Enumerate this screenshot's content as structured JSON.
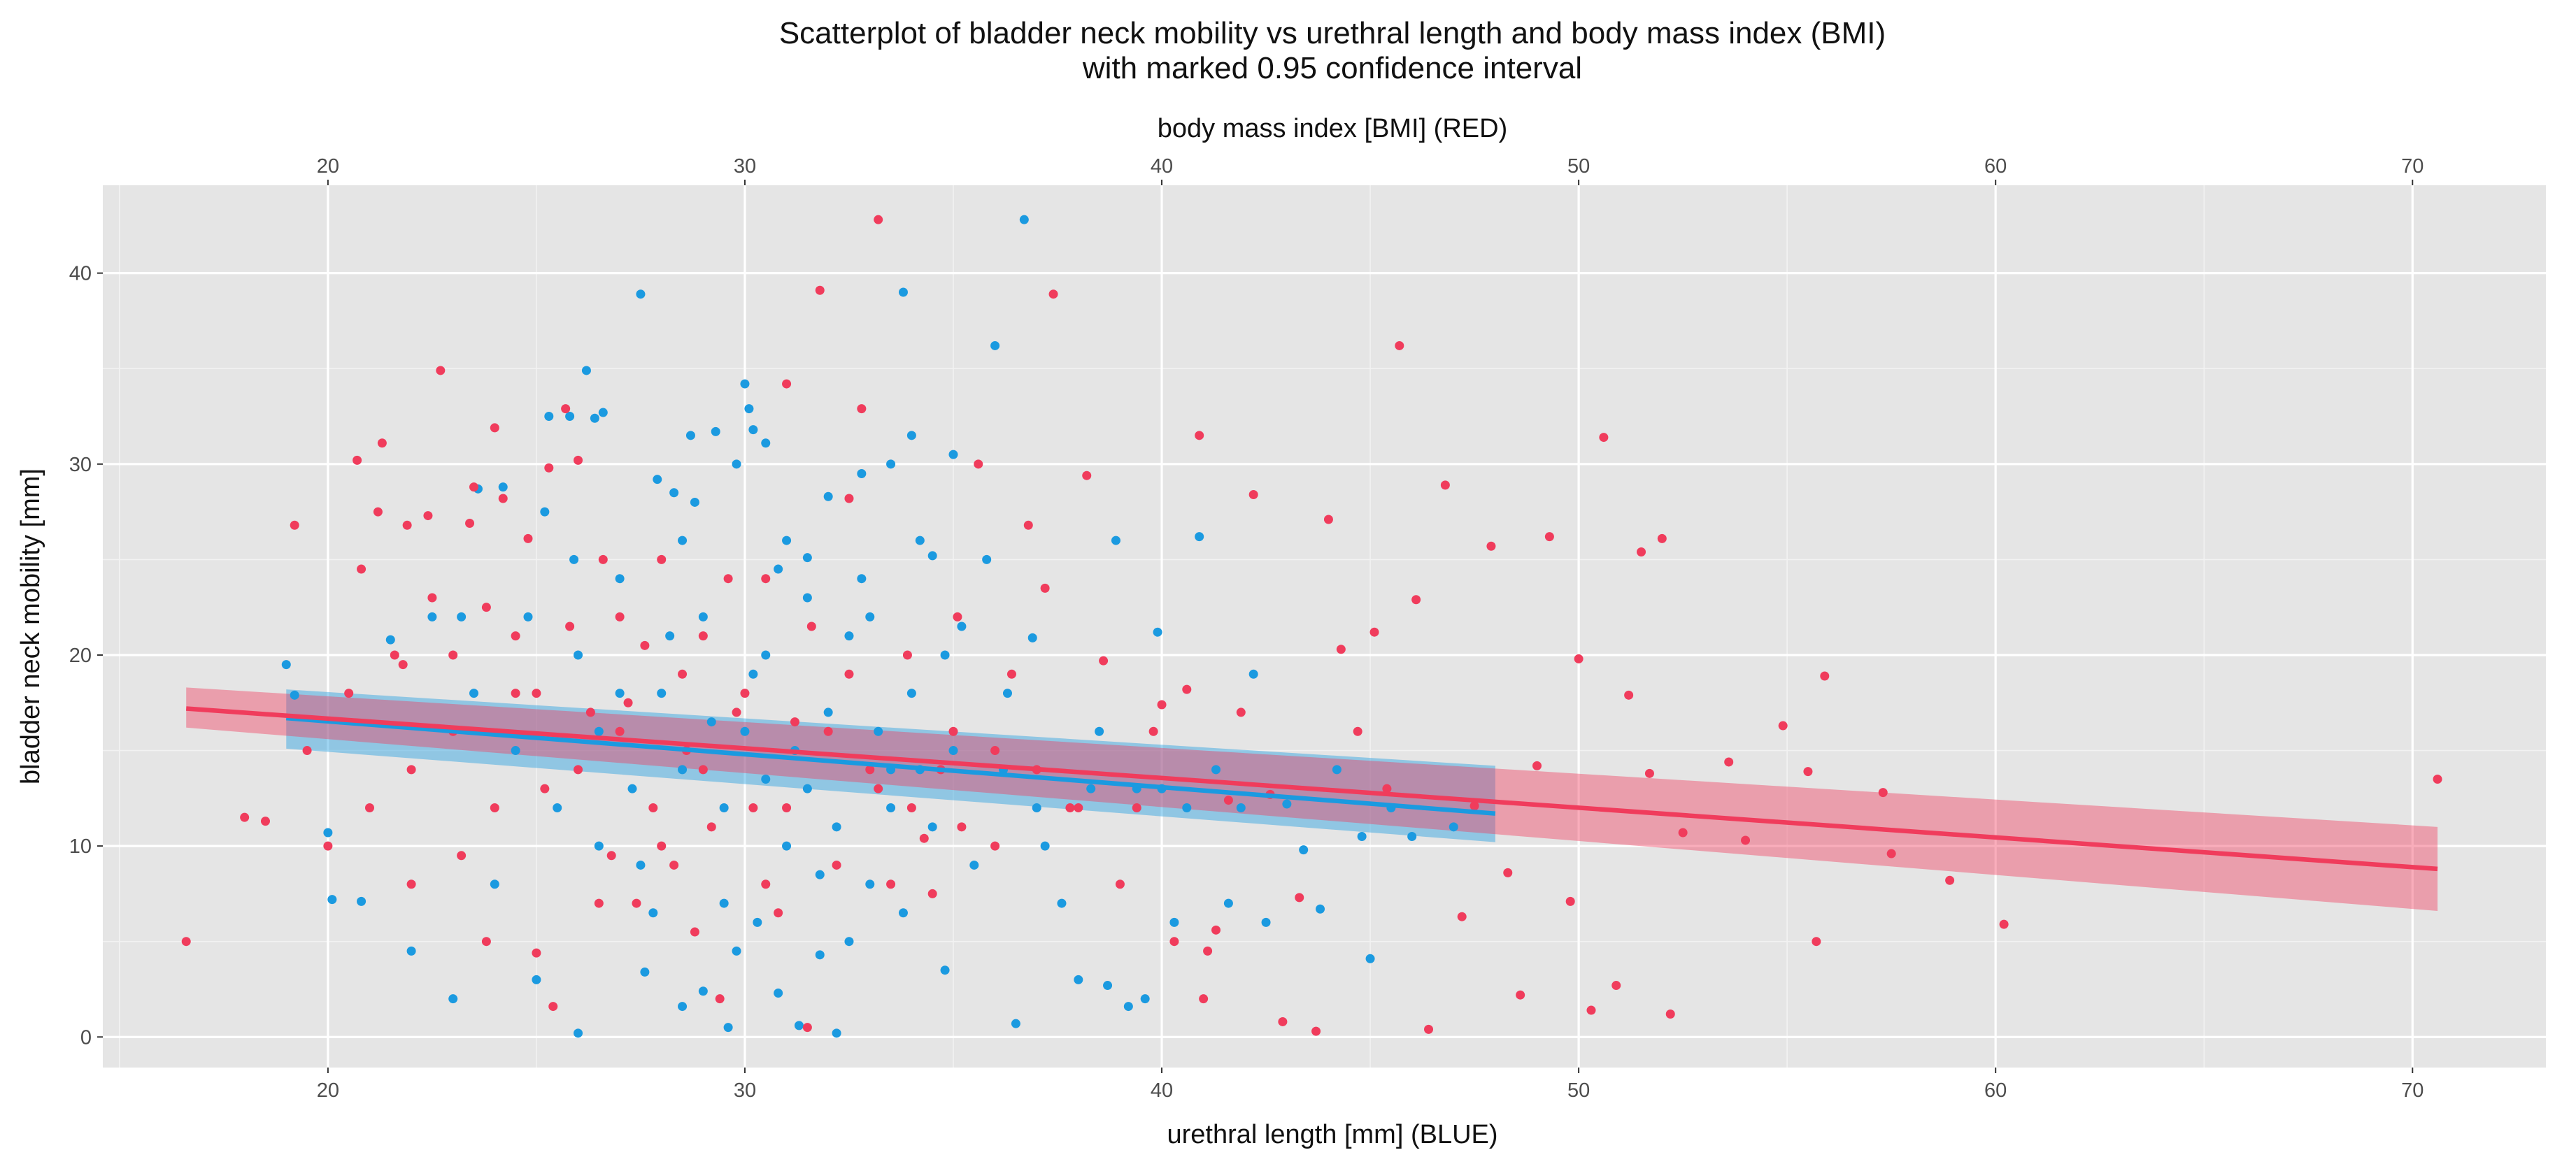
{
  "chart_data": {
    "type": "scatter",
    "title": "Scatterplot of bladder neck mobility vs urethral length and body mass index (BMI)",
    "subtitle": "with marked 0.95 confidence interval",
    "xlabel": "urethral length [mm] (BLUE)",
    "x2label": "body mass index [BMI] (RED)",
    "ylabel": "bladder neck mobility [mm]",
    "xlim": [
      14.6,
      73.2
    ],
    "ylim": [
      -1.6,
      44.6
    ],
    "x_ticks": [
      20,
      30,
      40,
      50,
      60,
      70
    ],
    "x_tick_labels": [
      "20",
      "30",
      "40",
      "50",
      "60",
      "70"
    ],
    "x2_ticks": [
      20,
      30,
      40,
      50,
      60,
      70
    ],
    "x2_tick_labels": [
      "20",
      "30",
      "40",
      "50",
      "60",
      "70"
    ],
    "y_ticks": [
      0,
      10,
      20,
      30,
      40
    ],
    "y_tick_labels": [
      "0",
      "10",
      "20",
      "30",
      "40"
    ],
    "grid": true,
    "background": "#e5e5e5",
    "series": [
      {
        "name": "urethral length (BLUE)",
        "color": "#1b9ae0",
        "points": [
          [
            19,
            19.5
          ],
          [
            19.2,
            17.9
          ],
          [
            20,
            10.7
          ],
          [
            20.1,
            7.2
          ],
          [
            20.8,
            7.1
          ],
          [
            21.5,
            20.8
          ],
          [
            22,
            4.5
          ],
          [
            22.5,
            22
          ],
          [
            23,
            2
          ],
          [
            23.2,
            22
          ],
          [
            23.6,
            28.7
          ],
          [
            24,
            8
          ],
          [
            24.2,
            28.8
          ],
          [
            25,
            3
          ],
          [
            25.2,
            27.5
          ],
          [
            25.3,
            32.5
          ],
          [
            25.8,
            32.5
          ],
          [
            26,
            0.2
          ],
          [
            26.2,
            34.9
          ],
          [
            26.4,
            32.4
          ],
          [
            26.6,
            32.7
          ],
          [
            27,
            18
          ],
          [
            27.5,
            38.9
          ],
          [
            27.6,
            3.4
          ],
          [
            27.9,
            29.2
          ],
          [
            28.3,
            28.5
          ],
          [
            28.5,
            1.6
          ],
          [
            28.7,
            31.5
          ],
          [
            29,
            2.4
          ],
          [
            29.3,
            31.7
          ],
          [
            29.6,
            0.5
          ],
          [
            29.8,
            30
          ],
          [
            30,
            34.2
          ],
          [
            30.1,
            32.9
          ],
          [
            30.2,
            31.8
          ],
          [
            30.3,
            6
          ],
          [
            30.5,
            31.1
          ],
          [
            30.8,
            2.3
          ],
          [
            31,
            26
          ],
          [
            31.3,
            0.6
          ],
          [
            31.5,
            25.1
          ],
          [
            31.8,
            4.3
          ],
          [
            32,
            28.3
          ],
          [
            32.2,
            0.2
          ],
          [
            32.8,
            29.5
          ],
          [
            33,
            22
          ],
          [
            33.5,
            30
          ],
          [
            33.8,
            39
          ],
          [
            34,
            31.5
          ],
          [
            34.2,
            26
          ],
          [
            34.5,
            25.2
          ],
          [
            34.8,
            3.5
          ],
          [
            35,
            30.5
          ],
          [
            35.2,
            21.5
          ],
          [
            35.5,
            9
          ],
          [
            35.8,
            25
          ],
          [
            36,
            36.2
          ],
          [
            36.3,
            18
          ],
          [
            36.5,
            0.7
          ],
          [
            36.7,
            42.8
          ],
          [
            36.9,
            20.9
          ],
          [
            37.2,
            10
          ],
          [
            37.6,
            7
          ],
          [
            38,
            3
          ],
          [
            38.3,
            13
          ],
          [
            38.7,
            2.7
          ],
          [
            38.9,
            26
          ],
          [
            39.2,
            1.6
          ],
          [
            39.4,
            13
          ],
          [
            39.6,
            2
          ],
          [
            39.9,
            21.2
          ],
          [
            40,
            13
          ],
          [
            40.3,
            6
          ],
          [
            40.6,
            12
          ],
          [
            40.9,
            26.2
          ],
          [
            41.3,
            14
          ],
          [
            41.6,
            7
          ],
          [
            41.9,
            12
          ],
          [
            42.2,
            19
          ],
          [
            42.5,
            6
          ],
          [
            43,
            12.2
          ],
          [
            43.4,
            9.8
          ],
          [
            43.8,
            6.7
          ],
          [
            44.2,
            14
          ],
          [
            44.8,
            10.5
          ],
          [
            45,
            4.1
          ],
          [
            45.5,
            12
          ],
          [
            46,
            10.5
          ],
          [
            47,
            11
          ],
          [
            26,
            20
          ],
          [
            27,
            24
          ],
          [
            28,
            18
          ],
          [
            28.5,
            14
          ],
          [
            29,
            22
          ],
          [
            29.5,
            12
          ],
          [
            30,
            16
          ],
          [
            30.5,
            20
          ],
          [
            31,
            10
          ],
          [
            31.5,
            13
          ],
          [
            32,
            17
          ],
          [
            32.5,
            21
          ],
          [
            33,
            8
          ],
          [
            33.5,
            14
          ],
          [
            34,
            18
          ],
          [
            34.5,
            11
          ],
          [
            35,
            15
          ],
          [
            27.5,
            9
          ],
          [
            28.5,
            26
          ],
          [
            29.5,
            7
          ],
          [
            30.5,
            13.5
          ],
          [
            31.5,
            23
          ],
          [
            32.5,
            5
          ],
          [
            33.5,
            12
          ],
          [
            26.5,
            16
          ],
          [
            27.3,
            13
          ],
          [
            28.2,
            21
          ],
          [
            29.2,
            16.5
          ],
          [
            30.2,
            19
          ],
          [
            31.2,
            15
          ],
          [
            32.2,
            11
          ],
          [
            33.2,
            16
          ],
          [
            34.2,
            14
          ],
          [
            25.5,
            12
          ],
          [
            26.5,
            10
          ],
          [
            24.5,
            15
          ],
          [
            27.8,
            6.5
          ],
          [
            29.8,
            4.5
          ],
          [
            31.8,
            8.5
          ],
          [
            33.8,
            6.5
          ],
          [
            23.5,
            18
          ],
          [
            24.8,
            22
          ],
          [
            25.9,
            25
          ],
          [
            28.8,
            28
          ],
          [
            30.8,
            24.5
          ],
          [
            32.8,
            24
          ],
          [
            34.8,
            20
          ],
          [
            36.2,
            14
          ],
          [
            37,
            12
          ],
          [
            38.5,
            16
          ]
        ]
      },
      {
        "name": "body mass index (RED)",
        "color": "#f03c5c",
        "points": [
          [
            16.6,
            5
          ],
          [
            18,
            11.5
          ],
          [
            18.5,
            11.3
          ],
          [
            19.2,
            26.8
          ],
          [
            19.5,
            15
          ],
          [
            20,
            10
          ],
          [
            20.5,
            18
          ],
          [
            20.7,
            30.2
          ],
          [
            20.8,
            24.5
          ],
          [
            21,
            12
          ],
          [
            21.2,
            27.5
          ],
          [
            21.3,
            31.1
          ],
          [
            21.6,
            20
          ],
          [
            21.9,
            26.8
          ],
          [
            22,
            8
          ],
          [
            22.4,
            27.3
          ],
          [
            22.7,
            34.9
          ],
          [
            23,
            20
          ],
          [
            23.4,
            26.9
          ],
          [
            23.5,
            28.8
          ],
          [
            23.8,
            5
          ],
          [
            24,
            31.9
          ],
          [
            24.2,
            28.2
          ],
          [
            24.5,
            18
          ],
          [
            24.8,
            26.1
          ],
          [
            25,
            4.4
          ],
          [
            25.3,
            29.8
          ],
          [
            25.4,
            1.6
          ],
          [
            25.7,
            32.9
          ],
          [
            26,
            30.2
          ],
          [
            26.3,
            17
          ],
          [
            26.6,
            25
          ],
          [
            27,
            22
          ],
          [
            27.4,
            7
          ],
          [
            27.8,
            12
          ],
          [
            28,
            25
          ],
          [
            28.3,
            9
          ],
          [
            28.6,
            15
          ],
          [
            29,
            21
          ],
          [
            29.4,
            2
          ],
          [
            29.8,
            17
          ],
          [
            30.2,
            12
          ],
          [
            30.5,
            24
          ],
          [
            31,
            34.2
          ],
          [
            31.5,
            0.5
          ],
          [
            31.8,
            39.1
          ],
          [
            32.2,
            9
          ],
          [
            32.5,
            28.2
          ],
          [
            32.8,
            32.9
          ],
          [
            33.2,
            42.8
          ],
          [
            33.5,
            8
          ],
          [
            33.9,
            20
          ],
          [
            34.3,
            10.4
          ],
          [
            34.7,
            14
          ],
          [
            35.1,
            22
          ],
          [
            35.6,
            30
          ],
          [
            36,
            15
          ],
          [
            36.4,
            19
          ],
          [
            36.8,
            26.8
          ],
          [
            37.2,
            23.5
          ],
          [
            37.4,
            38.9
          ],
          [
            37.8,
            12
          ],
          [
            38.2,
            29.4
          ],
          [
            38.6,
            19.7
          ],
          [
            39,
            8
          ],
          [
            39.4,
            12
          ],
          [
            39.8,
            16
          ],
          [
            40,
            17.4
          ],
          [
            40.3,
            5
          ],
          [
            40.6,
            18.2
          ],
          [
            40.9,
            31.5
          ],
          [
            41,
            2
          ],
          [
            41.1,
            4.5
          ],
          [
            41.3,
            5.6
          ],
          [
            41.6,
            12.4
          ],
          [
            41.9,
            17
          ],
          [
            42.2,
            28.4
          ],
          [
            42.6,
            12.7
          ],
          [
            42.9,
            0.8
          ],
          [
            43.3,
            7.3
          ],
          [
            43.7,
            0.3
          ],
          [
            44,
            27.1
          ],
          [
            44.3,
            20.3
          ],
          [
            44.7,
            16
          ],
          [
            45.1,
            21.2
          ],
          [
            45.4,
            13
          ],
          [
            45.7,
            36.2
          ],
          [
            46.1,
            22.9
          ],
          [
            46.4,
            0.4
          ],
          [
            46.8,
            28.9
          ],
          [
            47.2,
            6.3
          ],
          [
            47.5,
            12.1
          ],
          [
            47.9,
            25.7
          ],
          [
            48.3,
            8.6
          ],
          [
            48.6,
            2.2
          ],
          [
            49,
            14.2
          ],
          [
            49.3,
            26.2
          ],
          [
            49.8,
            7.1
          ],
          [
            50,
            19.8
          ],
          [
            50.3,
            1.4
          ],
          [
            50.6,
            31.4
          ],
          [
            50.9,
            2.7
          ],
          [
            51.2,
            17.9
          ],
          [
            51.5,
            25.4
          ],
          [
            51.7,
            13.8
          ],
          [
            52,
            26.1
          ],
          [
            52.2,
            1.2
          ],
          [
            52.5,
            10.7
          ],
          [
            53.6,
            14.4
          ],
          [
            54,
            10.3
          ],
          [
            54.9,
            16.3
          ],
          [
            55.5,
            13.9
          ],
          [
            55.7,
            5
          ],
          [
            55.9,
            18.9
          ],
          [
            57.3,
            12.8
          ],
          [
            57.5,
            9.6
          ],
          [
            58.9,
            8.2
          ],
          [
            60.2,
            5.9
          ],
          [
            70.6,
            13.5
          ],
          [
            22,
            14
          ],
          [
            23,
            16
          ],
          [
            24,
            12
          ],
          [
            25,
            18
          ],
          [
            26,
            14
          ],
          [
            27,
            16
          ],
          [
            28,
            10
          ],
          [
            29,
            14
          ],
          [
            30,
            18
          ],
          [
            31,
            12
          ],
          [
            32,
            16
          ],
          [
            33,
            14
          ],
          [
            34,
            12
          ],
          [
            35,
            16
          ],
          [
            36,
            10
          ],
          [
            37,
            14
          ],
          [
            38,
            12
          ],
          [
            24.5,
            21
          ],
          [
            26.5,
            7
          ],
          [
            28.5,
            19
          ],
          [
            30.5,
            8
          ],
          [
            32.5,
            19
          ],
          [
            34.5,
            7.5
          ],
          [
            23.2,
            9.5
          ],
          [
            25.2,
            13
          ],
          [
            27.2,
            17.5
          ],
          [
            29.2,
            11
          ],
          [
            31.2,
            16.5
          ],
          [
            33.2,
            13
          ],
          [
            35.2,
            11
          ],
          [
            22.5,
            23
          ],
          [
            25.8,
            21.5
          ],
          [
            27.6,
            20.5
          ],
          [
            29.6,
            24
          ],
          [
            31.6,
            21.5
          ],
          [
            21.8,
            19.5
          ],
          [
            23.8,
            22.5
          ],
          [
            26.8,
            9.5
          ],
          [
            28.8,
            5.5
          ],
          [
            30.8,
            6.5
          ]
        ]
      }
    ],
    "regression_lines": [
      {
        "name": "urethral length fit",
        "color": "#1b9ae0",
        "x": [
          19,
          48
        ],
        "y": [
          16.7,
          11.7
        ],
        "ci_low": [
          15.1,
          10.2
        ],
        "ci_high": [
          18.2,
          14.2
        ]
      },
      {
        "name": "BMI fit",
        "color": "#f03c5c",
        "x": [
          16.6,
          70.6
        ],
        "y": [
          17.2,
          8.8
        ],
        "ci_low": [
          16.2,
          6.6
        ],
        "ci_high": [
          18.3,
          11
        ]
      }
    ]
  }
}
